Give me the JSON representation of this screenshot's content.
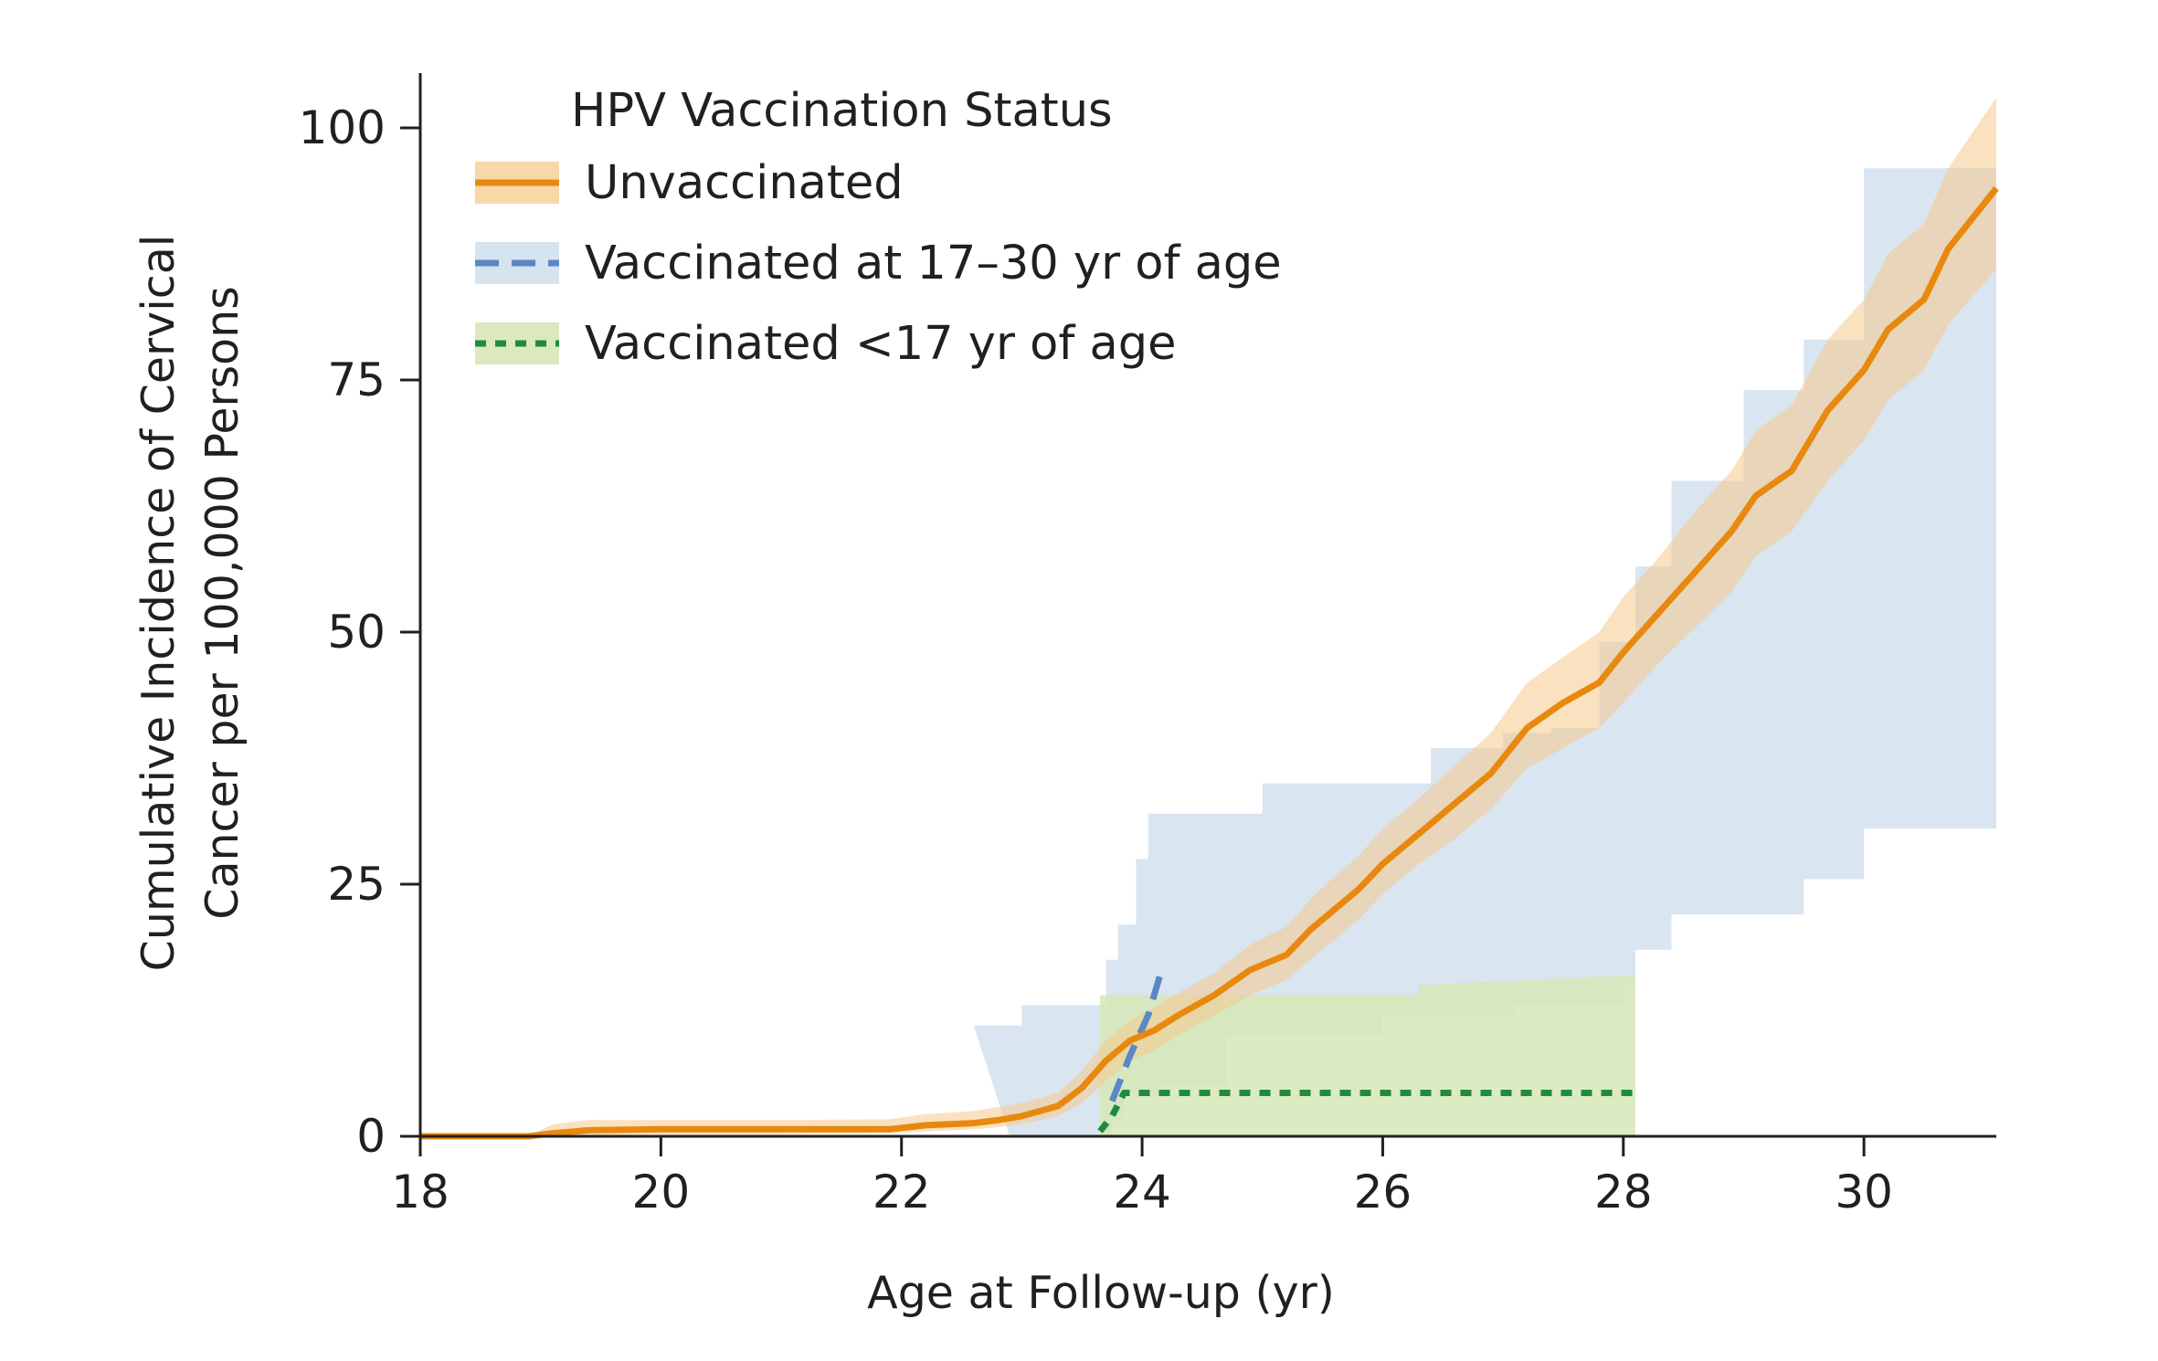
{
  "chart_data": {
    "type": "line",
    "title": "",
    "xlabel": "Age at Follow-up (yr)",
    "ylabel_lines": [
      "Cumulative Incidence of Cervical",
      "Cancer per 100,000 Persons"
    ],
    "xlim": [
      18,
      31.1
    ],
    "ylim": [
      0,
      100
    ],
    "xticks": [
      18,
      20,
      22,
      24,
      26,
      28,
      30
    ],
    "yticks": [
      0,
      25,
      50,
      75,
      100
    ],
    "grid": false,
    "legend": {
      "title": "HPV Vaccination Status",
      "placement": "top-left"
    },
    "series": [
      {
        "name": "Unvaccinated",
        "color": "#e8890f",
        "band_color": "#f6c98c",
        "line_style": "solid",
        "points": [
          [
            18,
            0
          ],
          [
            18.9,
            0
          ],
          [
            19.1,
            0.3
          ],
          [
            19.4,
            0.6
          ],
          [
            20,
            0.7
          ],
          [
            21,
            0.7
          ],
          [
            21.9,
            0.7
          ],
          [
            22.2,
            1.1
          ],
          [
            22.6,
            1.3
          ],
          [
            22.8,
            1.6
          ],
          [
            23,
            2.0
          ],
          [
            23.3,
            3.0
          ],
          [
            23.5,
            4.8
          ],
          [
            23.7,
            7.5
          ],
          [
            23.9,
            9.5
          ],
          [
            24.1,
            10.5
          ],
          [
            24.3,
            12
          ],
          [
            24.6,
            14
          ],
          [
            24.9,
            16.5
          ],
          [
            25.2,
            18
          ],
          [
            25.4,
            20.5
          ],
          [
            25.6,
            22.5
          ],
          [
            25.8,
            24.5
          ],
          [
            26,
            27
          ],
          [
            26.3,
            30
          ],
          [
            26.6,
            33
          ],
          [
            26.9,
            36
          ],
          [
            27.2,
            40.5
          ],
          [
            27.5,
            43
          ],
          [
            27.8,
            45
          ],
          [
            28,
            48
          ],
          [
            28.3,
            52
          ],
          [
            28.6,
            56
          ],
          [
            28.9,
            60
          ],
          [
            29.1,
            63.5
          ],
          [
            29.4,
            66
          ],
          [
            29.7,
            72
          ],
          [
            30,
            76
          ],
          [
            30.2,
            80
          ],
          [
            30.5,
            83
          ],
          [
            30.7,
            88
          ],
          [
            31.1,
            94
          ]
        ],
        "band_lower": [
          [
            18,
            0
          ],
          [
            18.9,
            0
          ],
          [
            19.1,
            0
          ],
          [
            19.4,
            0.1
          ],
          [
            20,
            0.2
          ],
          [
            21,
            0.2
          ],
          [
            21.9,
            0.3
          ],
          [
            22.2,
            0.5
          ],
          [
            22.6,
            0.7
          ],
          [
            22.8,
            0.9
          ],
          [
            23,
            1.2
          ],
          [
            23.3,
            2.0
          ],
          [
            23.5,
            3.3
          ],
          [
            23.7,
            5.5
          ],
          [
            23.9,
            7.5
          ],
          [
            24.1,
            8.5
          ],
          [
            24.3,
            10
          ],
          [
            24.6,
            12
          ],
          [
            24.9,
            14
          ],
          [
            25.2,
            15.5
          ],
          [
            25.4,
            17.5
          ],
          [
            25.6,
            19.5
          ],
          [
            25.8,
            21.5
          ],
          [
            26,
            24
          ],
          [
            26.3,
            27
          ],
          [
            26.6,
            29.5
          ],
          [
            26.9,
            32.5
          ],
          [
            27.2,
            36.5
          ],
          [
            27.5,
            38.5
          ],
          [
            27.8,
            40.5
          ],
          [
            28,
            43
          ],
          [
            28.3,
            47
          ],
          [
            28.6,
            50.5
          ],
          [
            28.9,
            54
          ],
          [
            29.1,
            57.5
          ],
          [
            29.4,
            60
          ],
          [
            29.7,
            65
          ],
          [
            30,
            69
          ],
          [
            30.2,
            73
          ],
          [
            30.5,
            76
          ],
          [
            30.7,
            80.5
          ],
          [
            31.1,
            86
          ]
        ],
        "band_upper": [
          [
            18,
            0
          ],
          [
            18.9,
            0
          ],
          [
            19.1,
            1.2
          ],
          [
            19.4,
            1.6
          ],
          [
            20,
            1.6
          ],
          [
            21,
            1.6
          ],
          [
            21.9,
            1.7
          ],
          [
            22.2,
            2.2
          ],
          [
            22.6,
            2.5
          ],
          [
            22.8,
            2.9
          ],
          [
            23,
            3.3
          ],
          [
            23.3,
            4.3
          ],
          [
            23.5,
            6.5
          ],
          [
            23.7,
            9.5
          ],
          [
            23.9,
            11.5
          ],
          [
            24.1,
            12.7
          ],
          [
            24.3,
            14.2
          ],
          [
            24.6,
            16.2
          ],
          [
            24.9,
            19
          ],
          [
            25.2,
            20.8
          ],
          [
            25.4,
            23.5
          ],
          [
            25.6,
            25.8
          ],
          [
            25.8,
            27.8
          ],
          [
            26,
            30.5
          ],
          [
            26.3,
            33.5
          ],
          [
            26.6,
            36.8
          ],
          [
            26.9,
            40
          ],
          [
            27.2,
            45
          ],
          [
            27.5,
            47.5
          ],
          [
            27.8,
            50
          ],
          [
            28,
            53.5
          ],
          [
            28.3,
            57.5
          ],
          [
            28.6,
            62
          ],
          [
            28.9,
            66
          ],
          [
            29.1,
            70
          ],
          [
            29.4,
            72.5
          ],
          [
            29.7,
            79
          ],
          [
            30,
            83
          ],
          [
            30.2,
            87.5
          ],
          [
            30.5,
            90.5
          ],
          [
            30.7,
            96
          ],
          [
            31.1,
            103
          ]
        ]
      },
      {
        "name": "Vaccinated at 17–30 yr of age",
        "color": "#5b87c5",
        "band_color": "#cfdfec",
        "line_style": "dashed",
        "points": [
          [
            23.75,
            3.5
          ],
          [
            23.9,
            8
          ],
          [
            24.05,
            12
          ],
          [
            24.15,
            16
          ]
        ],
        "band_steps_lower": [
          [
            22.9,
            0
          ],
          [
            23.7,
            0
          ],
          [
            23.75,
            1.5
          ],
          [
            23.85,
            4
          ],
          [
            24.15,
            5
          ],
          [
            24.7,
            10
          ],
          [
            26,
            12
          ],
          [
            27.1,
            13
          ],
          [
            28,
            15
          ],
          [
            28.1,
            18.5
          ],
          [
            28.4,
            22
          ],
          [
            29.5,
            25.5
          ],
          [
            30,
            30.5
          ],
          [
            31.1,
            30.5
          ]
        ],
        "band_steps_upper": [
          [
            22.6,
            11
          ],
          [
            23,
            13
          ],
          [
            23.7,
            17.5
          ],
          [
            23.8,
            21
          ],
          [
            23.95,
            27.5
          ],
          [
            24.05,
            32
          ],
          [
            25,
            35
          ],
          [
            26.4,
            38.5
          ],
          [
            27,
            40
          ],
          [
            27.4,
            40.5
          ],
          [
            27.8,
            49
          ],
          [
            28.1,
            56.5
          ],
          [
            28.4,
            65
          ],
          [
            29,
            74
          ],
          [
            29.5,
            79
          ],
          [
            30,
            96
          ],
          [
            31.1,
            96
          ]
        ]
      },
      {
        "name": "Vaccinated <17 yr of age",
        "color": "#1e8c3c",
        "band_color": "#d6e8b7",
        "line_style": "dotted",
        "points": [
          [
            23.65,
            0.5
          ],
          [
            23.75,
            2
          ],
          [
            23.85,
            4.3
          ],
          [
            28.1,
            4.3
          ]
        ],
        "band_lower": [
          [
            23.65,
            0
          ],
          [
            28.1,
            0
          ]
        ],
        "band_upper": [
          [
            23.65,
            14
          ],
          [
            28.1,
            16
          ]
        ]
      }
    ]
  }
}
